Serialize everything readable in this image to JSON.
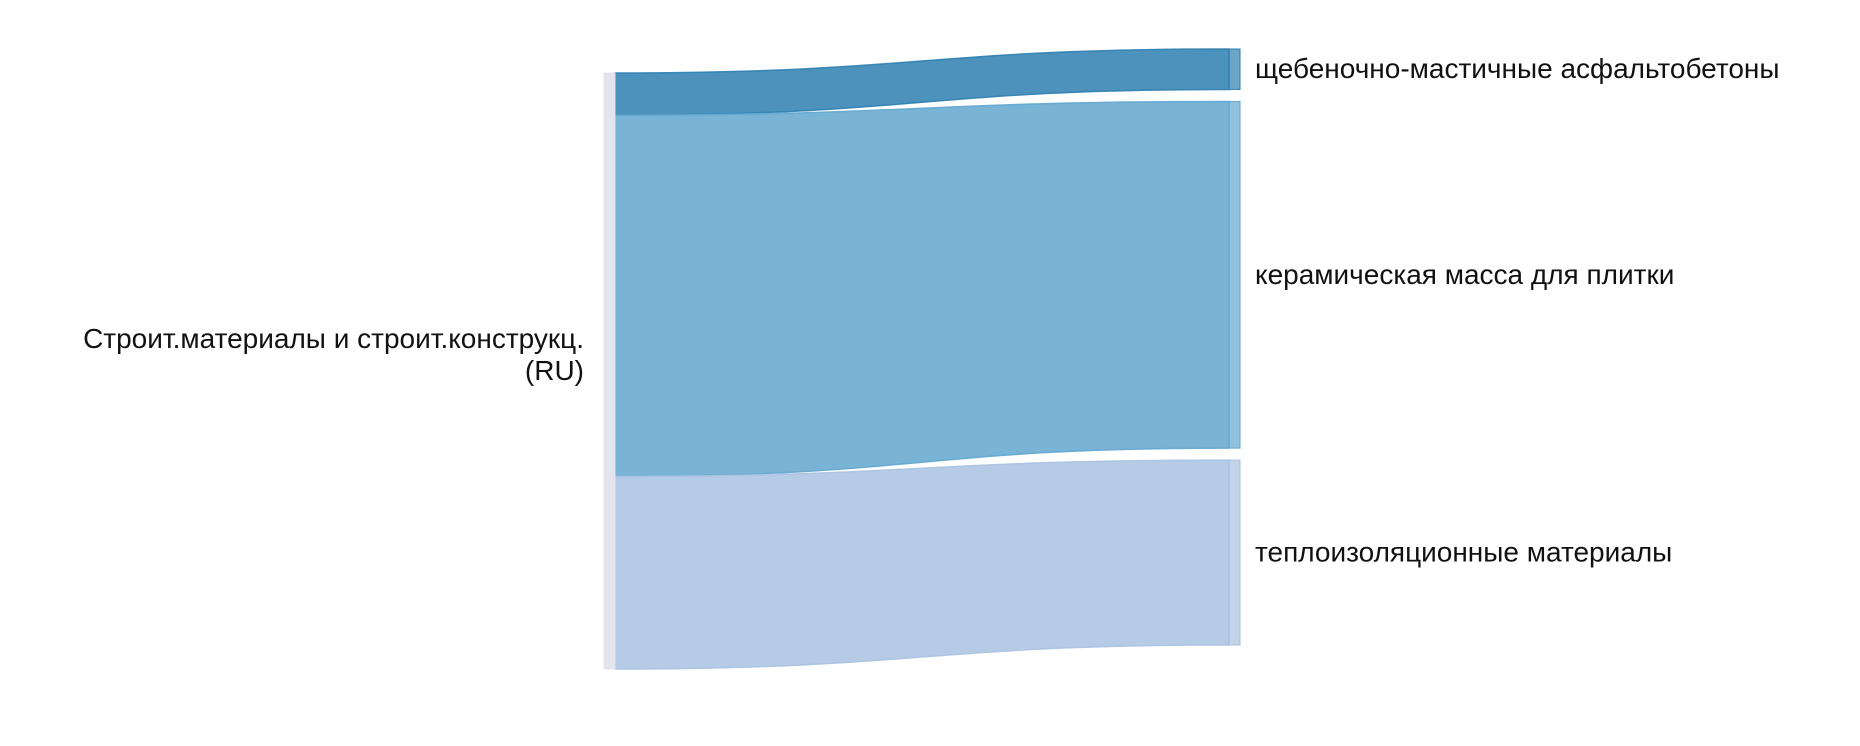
{
  "chart_data": {
    "type": "sankey",
    "source": {
      "name_lines": [
        "Строит.материалы и строит.конструкц.",
        "(RU)"
      ],
      "color": "#e4e4ef"
    },
    "targets": [
      {
        "name": "щебеночно-мастичные асфальтобетоны",
        "value": 7,
        "color": "#2e7fb1"
      },
      {
        "name": "керамическая масса для плитки",
        "value": 60,
        "color": "#62a6cf"
      },
      {
        "name": "теплоизоляционные материалы",
        "value": 32,
        "color": "#a9c2e0"
      }
    ]
  }
}
